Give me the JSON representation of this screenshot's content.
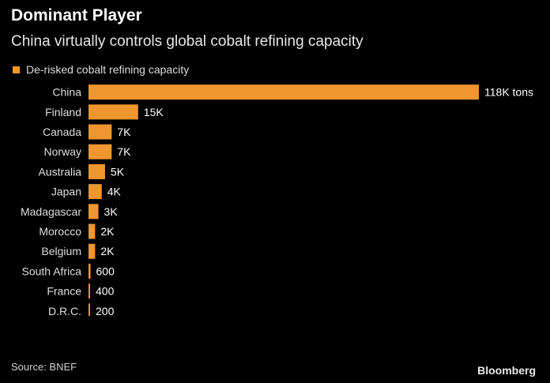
{
  "title": "Dominant Player",
  "subtitle": "China virtually controls global cobalt refining capacity",
  "legend": {
    "label": "De-risked cobalt refining capacity",
    "color": "#F0962E"
  },
  "source": "Source: BNEF",
  "logo": "Bloomberg",
  "chart_data": {
    "type": "bar",
    "orientation": "horizontal",
    "categories": [
      "China",
      "Finland",
      "Canada",
      "Norway",
      "Australia",
      "Japan",
      "Madagascar",
      "Morocco",
      "Belgium",
      "South Africa",
      "France",
      "D.R.C."
    ],
    "series": [
      {
        "name": "De-risked cobalt refining capacity",
        "color": "#F0962E",
        "values": [
          118000,
          15000,
          7000,
          7000,
          5000,
          4000,
          3000,
          2000,
          2000,
          600,
          400,
          200
        ],
        "labels": [
          "118K tons",
          "15K",
          "7K",
          "7K",
          "5K",
          "4K",
          "3K",
          "2K",
          "2K",
          "600",
          "400",
          "200"
        ]
      }
    ],
    "title": "Dominant Player",
    "subtitle": "China virtually controls global cobalt refining capacity",
    "xlabel": "",
    "ylabel": "",
    "grid": false,
    "legend_position": "top-left"
  }
}
